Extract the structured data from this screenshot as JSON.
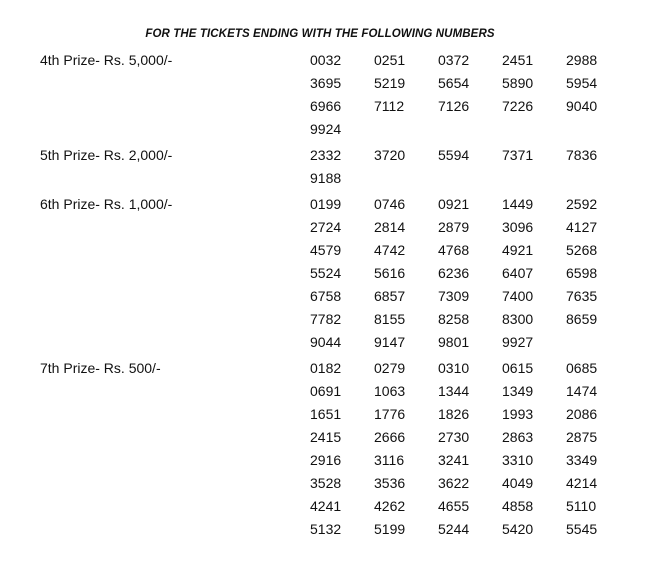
{
  "title": "FOR THE TICKETS ENDING WITH THE FOLLOWING NUMBERS",
  "prizes": [
    {
      "label": "4th Prize- Rs. 5,000/-",
      "numbers": [
        "0032",
        "0251",
        "0372",
        "2451",
        "2988",
        "3695",
        "5219",
        "5654",
        "5890",
        "5954",
        "6966",
        "7112",
        "7126",
        "7226",
        "9040",
        "9924"
      ]
    },
    {
      "label": "5th Prize- Rs. 2,000/-",
      "numbers": [
        "2332",
        "3720",
        "5594",
        "7371",
        "7836",
        "9188"
      ]
    },
    {
      "label": "6th Prize- Rs. 1,000/-",
      "numbers": [
        "0199",
        "0746",
        "0921",
        "1449",
        "2592",
        "2724",
        "2814",
        "2879",
        "3096",
        "4127",
        "4579",
        "4742",
        "4768",
        "4921",
        "5268",
        "5524",
        "5616",
        "6236",
        "6407",
        "6598",
        "6758",
        "6857",
        "7309",
        "7400",
        "7635",
        "7782",
        "8155",
        "8258",
        "8300",
        "8659",
        "9044",
        "9147",
        "9801",
        "9927"
      ]
    },
    {
      "label": "7th Prize- Rs. 500/-",
      "numbers": [
        "0182",
        "0279",
        "0310",
        "0615",
        "0685",
        "0691",
        "1063",
        "1344",
        "1349",
        "1474",
        "1651",
        "1776",
        "1826",
        "1993",
        "2086",
        "2415",
        "2666",
        "2730",
        "2863",
        "2875",
        "2916",
        "3116",
        "3241",
        "3310",
        "3349",
        "3528",
        "3536",
        "3622",
        "4049",
        "4214",
        "4241",
        "4262",
        "4655",
        "4858",
        "5110",
        "5132",
        "5199",
        "5244",
        "5420",
        "5545"
      ]
    }
  ]
}
